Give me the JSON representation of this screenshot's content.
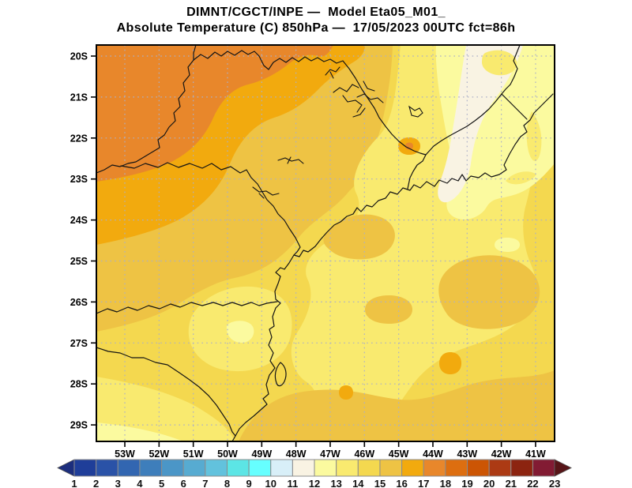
{
  "header": {
    "title_line1": "DIMNT/CGCT/INPE —  Model Eta05_M01_",
    "title_line2": "Absolute Temperature (C) 850hPa —  17/05/2023 00UTC fct=86h"
  },
  "axes": {
    "lat_labels": [
      "20S",
      "21S",
      "22S",
      "23S",
      "24S",
      "25S",
      "26S",
      "27S",
      "28S",
      "29S"
    ],
    "lon_labels": [
      "53W",
      "52W",
      "51W",
      "50W",
      "49W",
      "48W",
      "47W",
      "46W",
      "45W",
      "44W",
      "43W",
      "42W",
      "41W"
    ]
  },
  "colorbar": {
    "tick_labels": [
      "1",
      "2",
      "3",
      "4",
      "5",
      "6",
      "7",
      "8",
      "9",
      "10",
      "11",
      "12",
      "13",
      "14",
      "15",
      "16",
      "17",
      "18",
      "19",
      "20",
      "21",
      "22",
      "23"
    ],
    "segment_colors": [
      "#1F3E99",
      "#2A52A7",
      "#3266B1",
      "#3E7EBB",
      "#4B96C7",
      "#57ABD1",
      "#62C2DD",
      "#5CE5E5",
      "#66FFFF",
      "#D8EFF8",
      "#F9F3E3",
      "#FBFA9F",
      "#F9EA6F",
      "#F4D84F",
      "#EEC344",
      "#F2AA0E",
      "#E8872B",
      "#DD6E10",
      "#CC5504",
      "#AC3A14",
      "#8C2410",
      "#821B33"
    ],
    "left_arrow_color": "#1C2E7D",
    "right_arrow_color": "#571518",
    "number_color": "#111111"
  },
  "chart_data": {
    "type": "filled_contour_map",
    "institution": "DIMNT/CGCT/INPE",
    "model": "Eta05_M01_",
    "variable": "Absolute Temperature",
    "units": "C",
    "level": "850hPa",
    "valid_datetime": "17/05/2023 00UTC",
    "forecast": "fct=86h",
    "lat_ticks": [
      "20S",
      "21S",
      "22S",
      "23S",
      "24S",
      "25S",
      "26S",
      "27S",
      "28S",
      "29S"
    ],
    "lon_ticks": [
      "53W",
      "52W",
      "51W",
      "50W",
      "49W",
      "48W",
      "47W",
      "46W",
      "45W",
      "44W",
      "43W",
      "42W",
      "41W"
    ],
    "colorbar_value_range": [
      1,
      23
    ],
    "visible_band_range_c": [
      11,
      18
    ],
    "bands": {
      "b11": "#F9F3E3",
      "b12": "#FBFA9F",
      "b13": "#F9EA6F",
      "b14": "#F4D84F",
      "b15": "#EEC344",
      "b16": "#F2AA0E",
      "b17": "#E8872B"
    },
    "region": "Southeast / South Brazil coast and states"
  },
  "map_frame": {
    "grid_color": "#ABAFC8",
    "line_color": "#141414",
    "frame_color": "#000000",
    "label_color": "#000000"
  }
}
